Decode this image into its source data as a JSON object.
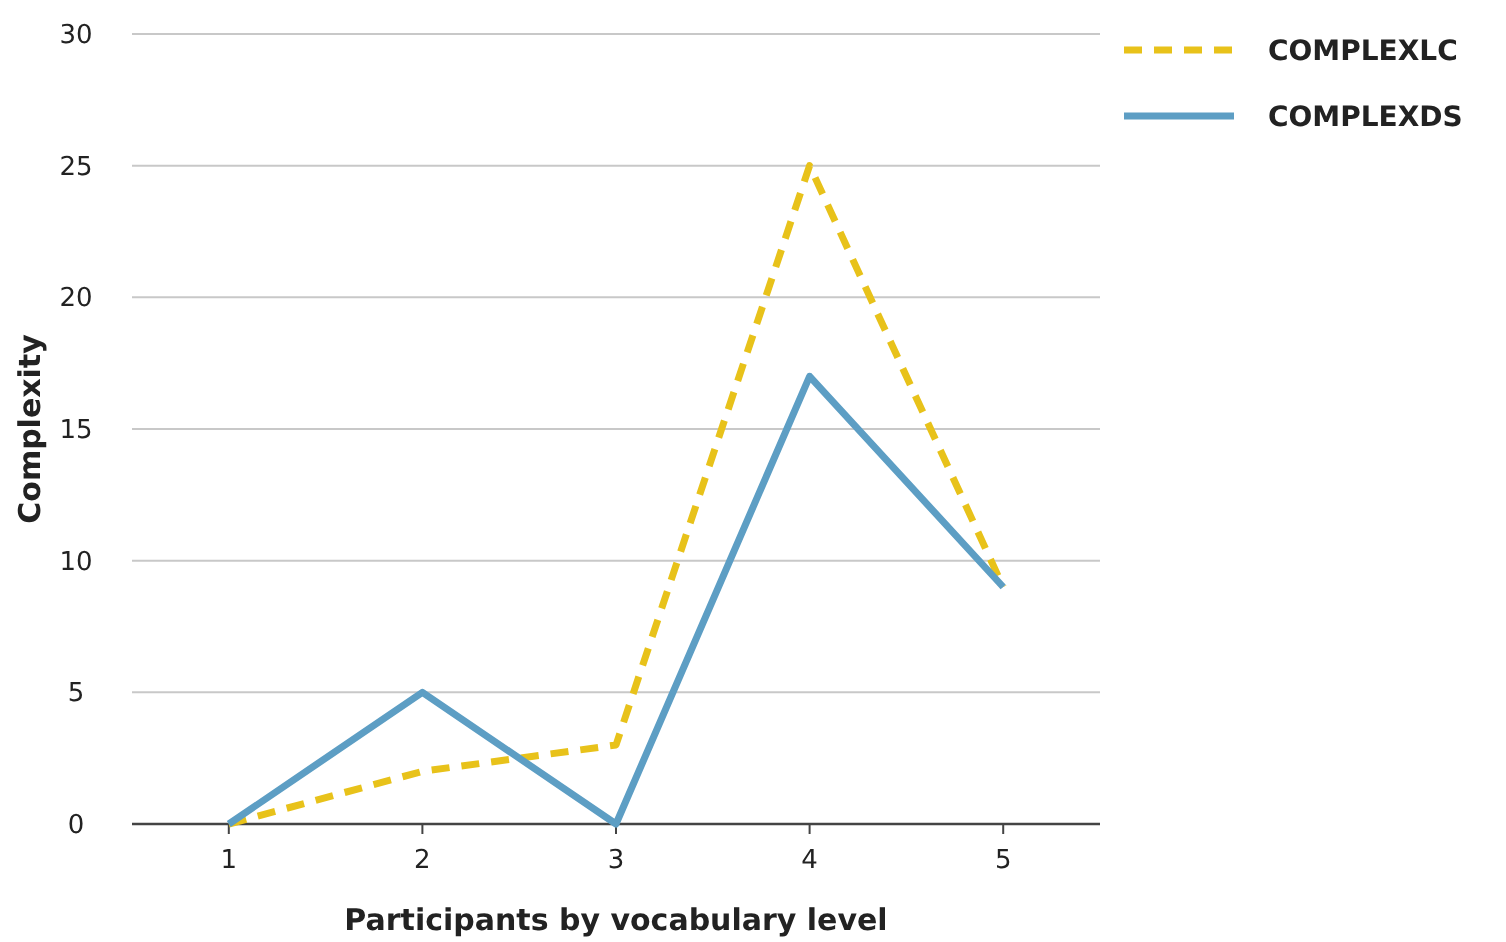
{
  "chart_data": {
    "type": "line",
    "xlabel": "Participants by vocabulary level",
    "ylabel": "Complexity",
    "categories": [
      "1",
      "2",
      "3",
      "4",
      "5"
    ],
    "series": [
      {
        "name": "COMPLEXLC",
        "color": "#e8c21a",
        "line_style": "dashed",
        "values": [
          0,
          2,
          3,
          25,
          9
        ]
      },
      {
        "name": "COMPLEXDS",
        "color": "#5d9ec4",
        "line_style": "solid",
        "values": [
          0,
          5,
          0,
          17,
          9
        ]
      }
    ],
    "ylim": [
      0,
      30
    ],
    "yticks": [
      0,
      5,
      10,
      15,
      20,
      25,
      30
    ],
    "grid": "y",
    "legend": "top right",
    "marker": "none"
  }
}
